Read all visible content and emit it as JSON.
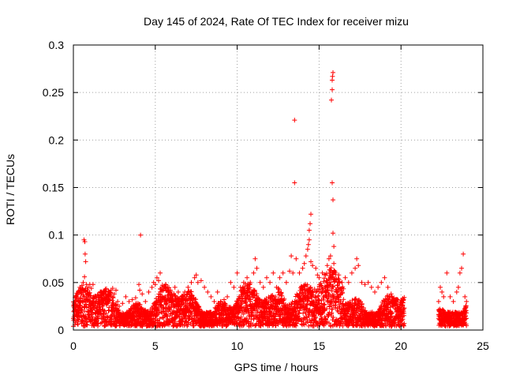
{
  "chart_data": {
    "type": "scatter",
    "title": "Day 145 of 2024, Rate Of TEC Index for receiver mizu",
    "xlabel": "GPS time / hours",
    "ylabel": "ROTI / TECUs",
    "xlim": [
      0,
      25
    ],
    "ylim": [
      0,
      0.3
    ],
    "xticks": [
      "0",
      "5",
      "10",
      "15",
      "20",
      "25"
    ],
    "yticks": [
      "0",
      "0.05",
      "0.1",
      "0.15",
      "0.2",
      "0.25",
      "0.3"
    ],
    "grid": true,
    "marker": "plus",
    "color": "#ff0000",
    "series": [
      {
        "points": [
          [
            0.05,
            0.028
          ],
          [
            0.1,
            0.022
          ],
          [
            0.2,
            0.035
          ],
          [
            0.3,
            0.03
          ],
          [
            0.4,
            0.045
          ],
          [
            0.5,
            0.04
          ],
          [
            0.6,
            0.05
          ],
          [
            0.65,
            0.095
          ],
          [
            0.7,
            0.093
          ],
          [
            0.72,
            0.08
          ],
          [
            0.75,
            0.072
          ],
          [
            0.68,
            0.056
          ],
          [
            0.8,
            0.048
          ],
          [
            0.9,
            0.045
          ],
          [
            1.0,
            0.048
          ],
          [
            1.1,
            0.044
          ],
          [
            1.2,
            0.048
          ],
          [
            1.3,
            0.035
          ],
          [
            1.4,
            0.03
          ],
          [
            1.5,
            0.028
          ],
          [
            1.7,
            0.03
          ],
          [
            1.8,
            0.038
          ],
          [
            1.9,
            0.033
          ],
          [
            2.0,
            0.04
          ],
          [
            2.1,
            0.038
          ],
          [
            2.2,
            0.04
          ],
          [
            2.3,
            0.042
          ],
          [
            2.4,
            0.044
          ],
          [
            2.5,
            0.038
          ],
          [
            2.6,
            0.042
          ],
          [
            2.7,
            0.03
          ],
          [
            2.8,
            0.025
          ],
          [
            3.0,
            0.028
          ],
          [
            3.2,
            0.035
          ],
          [
            3.4,
            0.03
          ],
          [
            3.6,
            0.032
          ],
          [
            3.8,
            0.034
          ],
          [
            4.0,
            0.048
          ],
          [
            4.1,
            0.1
          ],
          [
            4.05,
            0.042
          ],
          [
            4.2,
            0.038
          ],
          [
            4.4,
            0.03
          ],
          [
            4.6,
            0.04
          ],
          [
            4.8,
            0.045
          ],
          [
            4.9,
            0.05
          ],
          [
            5.0,
            0.048
          ],
          [
            5.1,
            0.055
          ],
          [
            5.2,
            0.052
          ],
          [
            5.3,
            0.06
          ],
          [
            5.4,
            0.045
          ],
          [
            5.6,
            0.035
          ],
          [
            5.8,
            0.04
          ],
          [
            6.0,
            0.038
          ],
          [
            6.2,
            0.045
          ],
          [
            6.4,
            0.04
          ],
          [
            6.6,
            0.03
          ],
          [
            6.8,
            0.04
          ],
          [
            7.0,
            0.045
          ],
          [
            7.2,
            0.05
          ],
          [
            7.4,
            0.055
          ],
          [
            7.5,
            0.058
          ],
          [
            7.6,
            0.05
          ],
          [
            7.8,
            0.052
          ],
          [
            8.0,
            0.045
          ],
          [
            8.2,
            0.04
          ],
          [
            8.4,
            0.035
          ],
          [
            8.6,
            0.03
          ],
          [
            8.8,
            0.04
          ],
          [
            9.0,
            0.03
          ],
          [
            9.2,
            0.032
          ],
          [
            9.4,
            0.035
          ],
          [
            9.6,
            0.05
          ],
          [
            9.8,
            0.045
          ],
          [
            10.0,
            0.06
          ],
          [
            10.2,
            0.045
          ],
          [
            10.4,
            0.05
          ],
          [
            10.6,
            0.055
          ],
          [
            10.8,
            0.05
          ],
          [
            11.0,
            0.06
          ],
          [
            11.1,
            0.075
          ],
          [
            11.2,
            0.065
          ],
          [
            11.4,
            0.05
          ],
          [
            11.6,
            0.045
          ],
          [
            11.8,
            0.055
          ],
          [
            12.0,
            0.05
          ],
          [
            12.2,
            0.06
          ],
          [
            12.4,
            0.045
          ],
          [
            12.6,
            0.055
          ],
          [
            12.8,
            0.06
          ],
          [
            13.0,
            0.05
          ],
          [
            13.2,
            0.062
          ],
          [
            13.3,
            0.078
          ],
          [
            13.4,
            0.06
          ],
          [
            13.5,
            0.221
          ],
          [
            13.5,
            0.155
          ],
          [
            13.6,
            0.075
          ],
          [
            13.8,
            0.06
          ],
          [
            14.0,
            0.065
          ],
          [
            14.1,
            0.07
          ],
          [
            14.2,
            0.078
          ],
          [
            14.3,
            0.085
          ],
          [
            14.35,
            0.09
          ],
          [
            14.4,
            0.105
          ],
          [
            14.45,
            0.112
          ],
          [
            14.5,
            0.122
          ],
          [
            14.4,
            0.095
          ],
          [
            14.5,
            0.072
          ],
          [
            14.6,
            0.068
          ],
          [
            14.8,
            0.065
          ],
          [
            14.9,
            0.058
          ],
          [
            15.0,
            0.055
          ],
          [
            15.2,
            0.06
          ],
          [
            15.4,
            0.058
          ],
          [
            15.5,
            0.068
          ],
          [
            15.6,
            0.075
          ],
          [
            15.7,
            0.078
          ],
          [
            15.75,
            0.242
          ],
          [
            15.8,
            0.253
          ],
          [
            15.8,
            0.263
          ],
          [
            15.82,
            0.267
          ],
          [
            15.85,
            0.271
          ],
          [
            15.8,
            0.155
          ],
          [
            15.85,
            0.137
          ],
          [
            15.85,
            0.102
          ],
          [
            15.9,
            0.088
          ],
          [
            15.9,
            0.07
          ],
          [
            16.0,
            0.06
          ],
          [
            16.2,
            0.058
          ],
          [
            16.4,
            0.05
          ],
          [
            16.6,
            0.055
          ],
          [
            16.8,
            0.05
          ],
          [
            17.0,
            0.06
          ],
          [
            17.2,
            0.065
          ],
          [
            17.3,
            0.075
          ],
          [
            17.4,
            0.068
          ],
          [
            17.6,
            0.05
          ],
          [
            17.8,
            0.048
          ],
          [
            18.0,
            0.05
          ],
          [
            18.2,
            0.045
          ],
          [
            18.4,
            0.04
          ],
          [
            18.6,
            0.045
          ],
          [
            18.8,
            0.05
          ],
          [
            19.0,
            0.055
          ],
          [
            19.2,
            0.045
          ],
          [
            19.4,
            0.038
          ],
          [
            19.6,
            0.03
          ],
          [
            19.8,
            0.025
          ],
          [
            20.0,
            0.022
          ],
          [
            20.1,
            0.018
          ],
          [
            22.3,
            0.03
          ],
          [
            22.4,
            0.045
          ],
          [
            22.5,
            0.04
          ],
          [
            22.6,
            0.035
          ],
          [
            22.8,
            0.06
          ],
          [
            23.0,
            0.035
          ],
          [
            23.2,
            0.03
          ],
          [
            23.4,
            0.04
          ],
          [
            23.5,
            0.045
          ],
          [
            23.6,
            0.06
          ],
          [
            23.7,
            0.065
          ],
          [
            23.8,
            0.08
          ],
          [
            23.9,
            0.035
          ],
          [
            24.0,
            0.03
          ]
        ]
      }
    ]
  }
}
